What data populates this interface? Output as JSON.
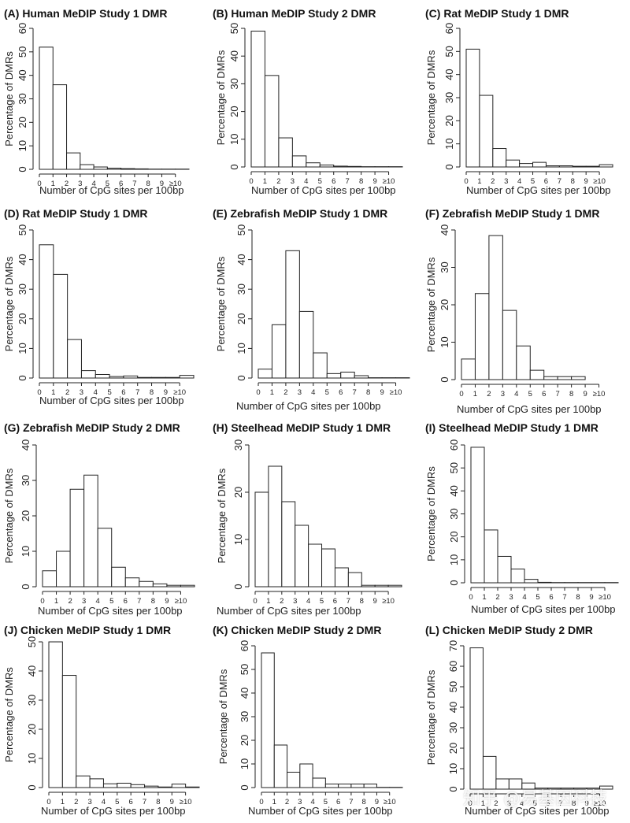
{
  "watermark": "知乎 @易基因科技",
  "chart_data": [
    {
      "type": "bar",
      "panel": "(A)",
      "title": "Human MeDIP Study 1 DMR",
      "xlabel": "Number of CpG sites per 100bp",
      "ylabel": "Percentage of DMRs",
      "x_ticks": [
        "0",
        "1",
        "2",
        "3",
        "4",
        "5",
        "6",
        "7",
        "8",
        "9",
        "≥10"
      ],
      "y_ticks": [
        0,
        10,
        20,
        30,
        40,
        50,
        60
      ],
      "ylim": [
        0,
        60
      ],
      "values": [
        52,
        36,
        7,
        2,
        1,
        0.5,
        0.3,
        0.2,
        0.1,
        0.1,
        0.1
      ]
    },
    {
      "type": "bar",
      "panel": "(B)",
      "title": "Human MeDIP Study 2 DMR",
      "xlabel": "Number of CpG sites per 100bp",
      "ylabel": "Percentage of DMRs",
      "x_ticks": [
        "0",
        "1",
        "2",
        "3",
        "4",
        "5",
        "6",
        "7",
        "8",
        "9",
        "≥10"
      ],
      "y_ticks": [
        0,
        10,
        20,
        30,
        40,
        50
      ],
      "ylim": [
        0,
        50
      ],
      "values": [
        49,
        33,
        10.5,
        4,
        1.5,
        0.7,
        0.3,
        0.2,
        0.1,
        0.1,
        0.1
      ]
    },
    {
      "type": "bar",
      "panel": "(C)",
      "title": "Rat MeDIP Study 1 DMR",
      "xlabel": "Number of CpG sites per 100bp",
      "ylabel": "Percentage of DMRs",
      "x_ticks": [
        "0",
        "1",
        "2",
        "3",
        "4",
        "5",
        "6",
        "7",
        "8",
        "9",
        "≥10"
      ],
      "y_ticks": [
        0,
        10,
        20,
        30,
        40,
        50,
        60
      ],
      "ylim": [
        0,
        60
      ],
      "values": [
        51,
        31,
        8,
        3,
        1.5,
        2,
        0.5,
        0.5,
        0.3,
        0.3,
        1
      ]
    },
    {
      "type": "bar",
      "panel": "(D)",
      "title": "Rat MeDIP Study 1 DMR",
      "xlabel": "Number of CpG sites per 100bp",
      "ylabel": "Percentage of DMRs",
      "x_ticks": [
        "0",
        "1",
        "2",
        "3",
        "4",
        "5",
        "6",
        "7",
        "8",
        "9",
        "≥10"
      ],
      "y_ticks": [
        0,
        10,
        20,
        30,
        40,
        50
      ],
      "ylim": [
        0,
        50
      ],
      "values": [
        45,
        35,
        13,
        2.5,
        1.2,
        0.5,
        0.7,
        0.2,
        0.2,
        0.2,
        0.9
      ]
    },
    {
      "type": "bar",
      "panel": "(E)",
      "title": "Zebrafish MeDIP Study 1 DMR",
      "xlabel": "Number of CpG sites per 100bp",
      "ylabel": "Percentage of DMRs",
      "x_ticks": [
        "0",
        "1",
        "2",
        "3",
        "4",
        "5",
        "6",
        "7",
        "8",
        "9",
        "≥10"
      ],
      "y_ticks": [
        0,
        10,
        20,
        30,
        40,
        50
      ],
      "ylim": [
        0,
        50
      ],
      "values": [
        3,
        18,
        43,
        22.5,
        8.5,
        1.5,
        2,
        0.8,
        0.1,
        0.1,
        0.1
      ]
    },
    {
      "type": "bar",
      "panel": "(F)",
      "title": "Zebrafish MeDIP Study 1 DMR",
      "xlabel": "Number of CpG sites per 100bp",
      "ylabel": "Percentage of DMRs",
      "x_ticks": [
        "0",
        "1",
        "2",
        "3",
        "4",
        "5",
        "6",
        "7",
        "8",
        "9",
        "≥10"
      ],
      "y_ticks": [
        0,
        10,
        20,
        30,
        40
      ],
      "ylim": [
        0,
        40
      ],
      "values": [
        5.5,
        23,
        38.5,
        18.5,
        9,
        2.5,
        0.8,
        0.8,
        0.8,
        0,
        0
      ]
    },
    {
      "type": "bar",
      "panel": "(G)",
      "title": "Zebrafish MeDIP Study 2 DMR",
      "xlabel": "Number of CpG sites per 100bp",
      "ylabel": "Percentage of DMRs",
      "x_ticks": [
        "0",
        "1",
        "2",
        "3",
        "4",
        "5",
        "6",
        "7",
        "8",
        "9",
        "≥10"
      ],
      "y_ticks": [
        0,
        10,
        20,
        30,
        40
      ],
      "ylim": [
        0,
        40
      ],
      "values": [
        4.5,
        10,
        27.5,
        31.5,
        16.5,
        5.5,
        2.5,
        1.5,
        0.8,
        0.4,
        0.4
      ]
    },
    {
      "type": "bar",
      "panel": "(H)",
      "title": "Steelhead MeDIP Study 1 DMR",
      "xlabel": "Number of CpG sites per 100bp",
      "ylabel": "Percentage of DMRs",
      "x_ticks": [
        "0",
        "1",
        "2",
        "3",
        "4",
        "5",
        "6",
        "7",
        "8",
        "9",
        "≥10"
      ],
      "y_ticks": [
        0,
        10,
        20,
        30
      ],
      "ylim": [
        0,
        30
      ],
      "values": [
        20,
        25.5,
        18,
        13,
        9,
        8,
        4,
        3,
        0.3,
        0.3,
        0.3
      ]
    },
    {
      "type": "bar",
      "panel": "(I)",
      "title": "Steelhead MeDIP Study 1 DMR",
      "xlabel": "Number of CpG sites per 100bp",
      "ylabel": "Percentage of DMRs",
      "x_ticks": [
        "0",
        "1",
        "2",
        "3",
        "4",
        "5",
        "6",
        "7",
        "8",
        "9",
        "≥10"
      ],
      "y_ticks": [
        0,
        10,
        20,
        30,
        40,
        50,
        60
      ],
      "ylim": [
        0,
        60
      ],
      "values": [
        59,
        23,
        11.5,
        6,
        1.5,
        0.2,
        0.1,
        0.1,
        0.1,
        0.1,
        0.1
      ]
    },
    {
      "type": "bar",
      "panel": "(J)",
      "title": "Chicken MeDIP Study 1 DMR",
      "xlabel": "Number of CpG sites per 100bp",
      "ylabel": "Percentage of DMRs",
      "x_ticks": [
        "0",
        "1",
        "2",
        "3",
        "4",
        "5",
        "6",
        "7",
        "8",
        "9",
        "≥10"
      ],
      "y_ticks": [
        0,
        10,
        20,
        30,
        40,
        50
      ],
      "ylim": [
        0,
        50
      ],
      "values": [
        50,
        38.5,
        4,
        3,
        1.3,
        1.5,
        1,
        0.5,
        0.2,
        1.2,
        0.2
      ]
    },
    {
      "type": "bar",
      "panel": "(K)",
      "title": "Chicken MeDIP Study 2 DMR",
      "xlabel": "Number of CpG sites per 100bp",
      "ylabel": "Percentage of DMRs",
      "x_ticks": [
        "0",
        "1",
        "2",
        "3",
        "4",
        "5",
        "6",
        "7",
        "8",
        "9",
        "≥10"
      ],
      "y_ticks": [
        0,
        10,
        20,
        30,
        40,
        50,
        60
      ],
      "ylim": [
        0,
        60
      ],
      "values": [
        57,
        18,
        6.5,
        10,
        4,
        1.5,
        1.5,
        1.5,
        1.5,
        0.1,
        0.1
      ]
    },
    {
      "type": "bar",
      "panel": "(L)",
      "title": "Chicken MeDIP Study 2 DMR",
      "xlabel": "Number of CpG sites per 100bp",
      "ylabel": "Percentage of DMRs",
      "x_ticks": [
        "0",
        "1",
        "2",
        "3",
        "4",
        "5",
        "6",
        "7",
        "8",
        "9",
        "≥10"
      ],
      "y_ticks": [
        0,
        10,
        20,
        30,
        40,
        50,
        60,
        70
      ],
      "ylim": [
        0,
        70
      ],
      "values": [
        69,
        16,
        5,
        5,
        3,
        0.5,
        0.5,
        0.5,
        0.5,
        0.5,
        1.5
      ]
    }
  ]
}
